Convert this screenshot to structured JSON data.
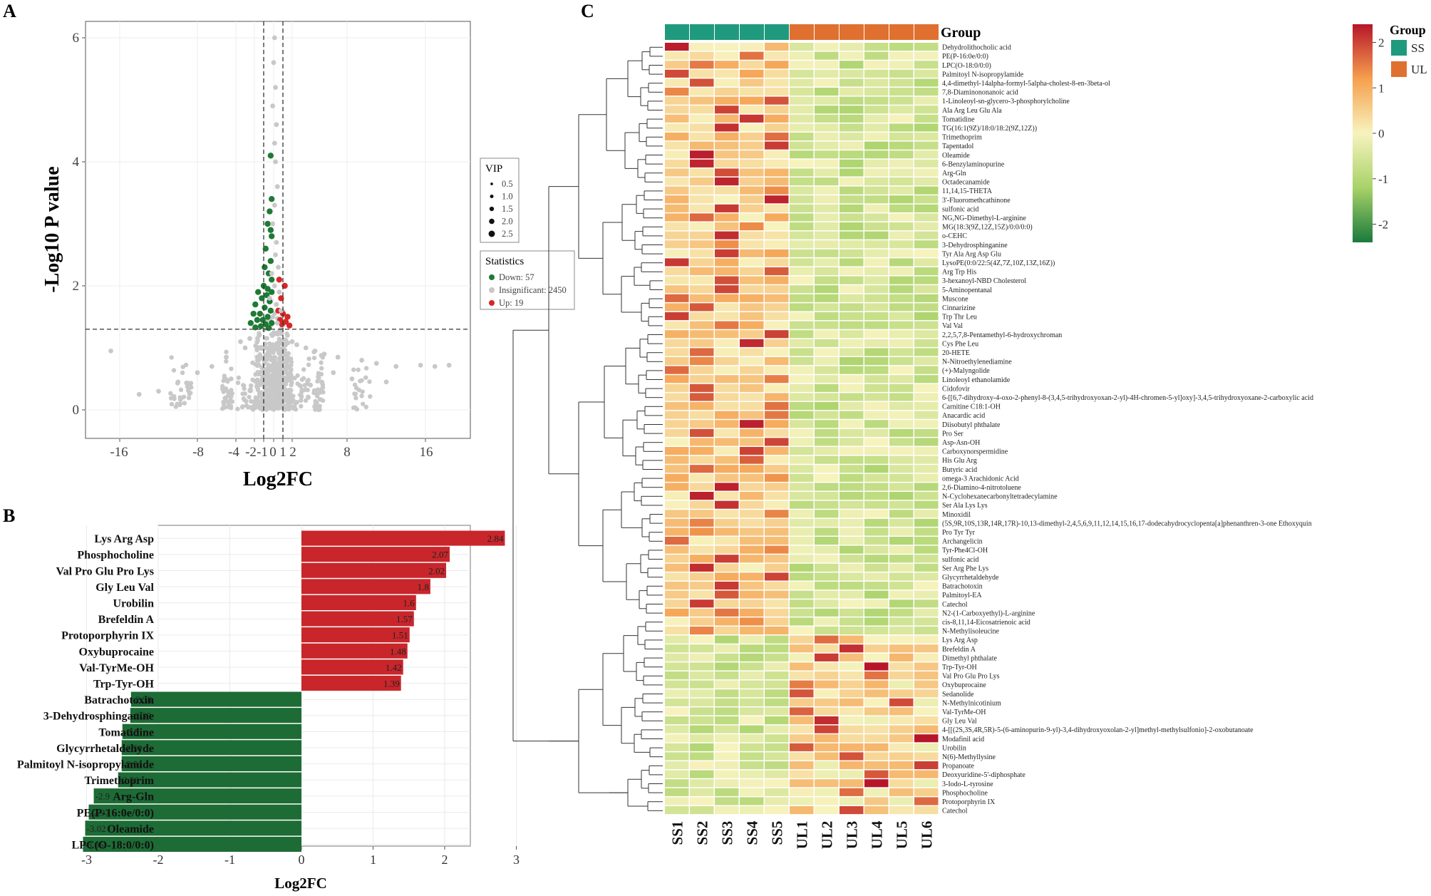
{
  "panels": {
    "a": "A",
    "b": "B",
    "c": "C"
  },
  "chart_data": [
    {
      "type": "scatter",
      "panel": "A",
      "xlabel": "Log2FC",
      "ylabel": "-Log10 P value",
      "xticks": [
        -16,
        -8,
        -4,
        -2,
        -1,
        0,
        1,
        2,
        8,
        16
      ],
      "xtick_labels": [
        "-16",
        "-8",
        "-4",
        "-2",
        "-1",
        "0",
        "1",
        "2",
        "8",
        "16"
      ],
      "yticks": [
        0,
        2,
        4,
        6
      ],
      "xlim": [
        -20,
        20
      ],
      "ylim": [
        -0.3,
        6.4
      ],
      "thresholds": {
        "log2fc": [
          -1,
          1
        ],
        "neglog10p": 1.3
      },
      "vip_legend": {
        "title": "VIP",
        "sizes": [
          0.5,
          1.0,
          1.5,
          2.0,
          2.5
        ],
        "labels": [
          "0.5",
          "1.0",
          "1.5",
          "2.0",
          "2.5"
        ]
      },
      "stats_legend": {
        "title": "Statistics",
        "entries": [
          {
            "label": "Down: 57",
            "color": "#1e7a35"
          },
          {
            "label": "Insignificant: 2450",
            "color": "#c8c8c8"
          },
          {
            "label": "Up: 19",
            "color": "#d62728"
          }
        ]
      },
      "series": [
        {
          "name": "Down",
          "color": "#1e7a35",
          "points": [
            [
              -0.3,
              4.1
            ],
            [
              -0.2,
              3.4
            ],
            [
              -0.4,
              3.2
            ],
            [
              -0.6,
              3.0
            ],
            [
              -0.2,
              2.8
            ],
            [
              -0.8,
              2.6
            ],
            [
              -0.3,
              2.4
            ],
            [
              -0.5,
              2.2
            ],
            [
              -1.0,
              2.0
            ],
            [
              -0.2,
              2.1
            ],
            [
              -1.6,
              1.9
            ],
            [
              -0.7,
              1.85
            ],
            [
              -1.2,
              1.8
            ],
            [
              -0.4,
              1.75
            ],
            [
              -1.9,
              1.7
            ],
            [
              -0.9,
              1.65
            ],
            [
              -0.3,
              1.6
            ],
            [
              -1.4,
              1.55
            ],
            [
              -2.1,
              1.55
            ],
            [
              -0.6,
              1.5
            ],
            [
              -1.1,
              1.45
            ],
            [
              -1.7,
              1.45
            ],
            [
              -0.2,
              1.4
            ],
            [
              -2.4,
              1.4
            ],
            [
              -0.8,
              1.38
            ],
            [
              -1.3,
              1.35
            ],
            [
              -1.9,
              1.33
            ],
            [
              -0.5,
              1.32
            ],
            [
              -0.3,
              2.9
            ],
            [
              -0.9,
              2.3
            ],
            [
              -0.6,
              1.95
            ],
            [
              -0.2,
              1.9
            ]
          ]
        },
        {
          "name": "Up",
          "color": "#d62728",
          "points": [
            [
              0.6,
              2.1
            ],
            [
              1.2,
              2.0
            ],
            [
              0.8,
              1.8
            ],
            [
              0.5,
              1.6
            ],
            [
              1.0,
              1.55
            ],
            [
              1.5,
              1.5
            ],
            [
              0.7,
              1.45
            ],
            [
              1.3,
              1.42
            ],
            [
              0.9,
              1.38
            ],
            [
              1.7,
              1.36
            ]
          ]
        },
        {
          "name": "Insignificant",
          "color": "#c8c8c8",
          "points": [
            [
              0.1,
              6.0
            ],
            [
              0.0,
              5.6
            ],
            [
              0.2,
              5.2
            ],
            [
              -0.1,
              4.9
            ],
            [
              0.3,
              4.6
            ],
            [
              0.1,
              4.3
            ],
            [
              0.2,
              4.0
            ],
            [
              0.4,
              3.6
            ],
            [
              0.1,
              3.3
            ],
            [
              -0.1,
              3.0
            ],
            [
              0.3,
              2.7
            ],
            [
              0.2,
              2.5
            ],
            [
              0.5,
              2.3
            ],
            [
              -0.2,
              2.2
            ],
            [
              0.1,
              2.0
            ],
            [
              0.6,
              1.9
            ],
            [
              -0.4,
              1.8
            ],
            [
              0.3,
              1.7
            ],
            [
              0.8,
              1.6
            ],
            [
              -0.1,
              1.5
            ],
            [
              0.4,
              1.4
            ],
            [
              -18.0,
              0.95
            ],
            [
              9.5,
              0.8
            ],
            [
              11.0,
              0.75
            ],
            [
              13.0,
              0.7
            ],
            [
              15.5,
              0.72
            ],
            [
              17.0,
              0.7
            ],
            [
              18.5,
              0.72
            ],
            [
              7.0,
              0.85
            ],
            [
              5.5,
              0.9
            ],
            [
              4.5,
              0.95
            ],
            [
              3.5,
              1.0
            ],
            [
              2.5,
              1.05
            ],
            [
              -3.0,
              1.0
            ],
            [
              -5.0,
              0.85
            ],
            [
              -6.5,
              0.7
            ],
            [
              -8.0,
              0.6
            ],
            [
              -10.0,
              0.45
            ],
            [
              -12.0,
              0.3
            ],
            [
              -14.0,
              0.25
            ],
            [
              -3.5,
              1.1
            ],
            [
              -2.5,
              1.15
            ],
            [
              -1.5,
              1.2
            ],
            [
              1.5,
              1.2
            ],
            [
              2.0,
              1.1
            ],
            [
              6.5,
              0.6
            ],
            [
              8.5,
              0.5
            ],
            [
              12.0,
              0.45
            ],
            [
              -4.5,
              0.5
            ],
            [
              4.0,
              0.4
            ]
          ]
        }
      ]
    },
    {
      "type": "bar",
      "panel": "B",
      "orientation": "horizontal",
      "xlabel": "Log2FC",
      "xlim": [
        -3.2,
        3.3
      ],
      "xticks": [
        -3,
        -2,
        -1,
        0,
        1,
        2,
        3
      ],
      "xtick_labels": [
        "-3",
        "-2",
        "-1",
        "0",
        "1",
        "2",
        "3"
      ],
      "categories": [
        "Lys Arg Asp",
        "Phosphocholine",
        "Val Pro Glu Pro Lys",
        "Gly Leu Val",
        "Urobilin",
        "Brefeldin A",
        "Protoporphyrin IX",
        "Oxybuprocaine",
        "Val-TyrMe-OH",
        "Trp-Tyr-OH",
        "Batrachotoxin",
        "3-Dehydrosphinganine",
        "Tomatidine",
        "Glycyrrhetaldehyde",
        "Palmitoyl N-isopropylamide",
        "Trimethoprim",
        "Arg-Gln",
        "PE(P-16:0e/0:0)",
        "Oleamide",
        "LPC(O-18:0/0:0)"
      ],
      "values": [
        2.84,
        2.07,
        2.02,
        1.8,
        1.6,
        1.57,
        1.51,
        1.48,
        1.42,
        1.39,
        -2.38,
        -2.39,
        -2.5,
        -2.51,
        -2.51,
        -2.56,
        -2.9,
        -2.97,
        -3.02,
        -3.05
      ],
      "value_labels": [
        "2.84",
        "2.07",
        "2.02",
        "1.8",
        "1.6",
        "1.57",
        "1.51",
        "1.48",
        "1.42",
        "1.39",
        "-2.38",
        "-2.39",
        "-2.5",
        "-2.51",
        "-2.51",
        "-2.56",
        "-2.9",
        "-2.97",
        "-3.02",
        "-3.05"
      ],
      "colors": {
        "up": "#c8262b",
        "down": "#1d6b35"
      }
    },
    {
      "type": "heatmap",
      "panel": "C",
      "columns": [
        "SS1",
        "SS2",
        "SS3",
        "SS4",
        "SS5",
        "UL1",
        "UL2",
        "UL3",
        "UL4",
        "UL5",
        "UL6"
      ],
      "column_groups": [
        "SS",
        "SS",
        "SS",
        "SS",
        "SS",
        "UL",
        "UL",
        "UL",
        "UL",
        "UL",
        "UL"
      ],
      "group_title": "Group",
      "group_colors": {
        "SS": "#1f9a7f",
        "UL": "#e07030"
      },
      "group_legend": {
        "title": "Group",
        "entries": [
          {
            "label": "SS",
            "color": "#1f9a7f"
          },
          {
            "label": "UL",
            "color": "#e07030"
          }
        ]
      },
      "colorbar": {
        "min": -2.4,
        "max": 2.4,
        "ticks": [
          -2,
          -1,
          0,
          1,
          2
        ],
        "tick_labels": [
          "-2",
          "-1",
          "0",
          "1",
          "2"
        ],
        "colors": [
          "#1a7a3c",
          "#a8d268",
          "#f7f3be",
          "#f6a04e",
          "#b7162a"
        ]
      },
      "rows": [
        "Dehydrolithocholic acid",
        "PE(P-16:0e/0:0)",
        "LPC(O-18:0/0:0)",
        "Palmitoyl N-isopropylamide",
        "4,4-dimethyl-14alpha-formyl-5alpha-cholest-8-en-3beta-ol",
        "7,8-Diaminononanoic acid",
        "1-Linoleoyl-sn-glycero-3-phosphorylcholine",
        "Ala Arg Leu Glu Ala",
        "Tomatidine",
        "TG(16:1(9Z)/18:0/18:2(9Z,12Z))",
        "Trimethoprim",
        "Tapentadol",
        "Oleamide",
        "6-Benzylaminopurine",
        "Arg-Gln",
        "Octadecanamide",
        "11,14,15-THETA",
        "3'-Fluoromethcathinone",
        "sulfonic acid",
        "NG,NG-Dimethyl-L-arginine",
        "MG(18:3(9Z,12Z,15Z)/0:0/0:0)",
        "o-CEHC",
        "3-Dehydrosphinganine",
        "Tyr Ala Arg Asp Glu",
        "LysoPE(0:0/22:5(4Z,7Z,10Z,13Z,16Z))",
        "Arg Trp His",
        "3-hexanoyl-NBD Cholesterol",
        "5-Aminopentanal",
        "Muscone",
        "Cinnarizine",
        "Trp Thr Leu",
        "Val Val",
        "2,2,5,7,8-Pentamethyl-6-hydroxychroman",
        "Cys Phe Leu",
        "20-HETE",
        "N-Nitroethylenediamine",
        "(+)-Malyngolide",
        "Linoleoyl ethanolamide",
        "Cidofovir",
        "6-[[6,7-dihydroxy-4-oxo-2-phenyl-8-(3,4,5-trihydroxyoxan-2-yl)-4H-chromen-5-yl]oxy]-3,4,5-trihydroxyoxane-2-carboxylic acid",
        "Carnitine C18:1-OH",
        "Anacardic acid",
        "Diisobutyl phthalate",
        "Pro Ser",
        "Asp-Asn-OH",
        "Carboxynorspermidine",
        "His Glu Arg",
        "Butyric acid",
        "omega-3 Arachidonic Acid",
        "2,6-Diamino-4-nitrotoluene",
        "N-Cyclohexanecarbonyltetradecylamine",
        "Ser Ala Lys Lys",
        "Minoxidil",
        "(5S,9R,10S,13R,14R,17R)-10,13-dimethyl-2,4,5,6,9,11,12,14,15,16,17-dodecahydrocyclopenta[a]phenanthren-3-one Ethoxyquin",
        "Pro Tyr Tyr",
        "Archangelicin",
        "Tyr-Phe4Cl-OH",
        "sulfonic acid",
        "Ser Arg Phe Lys",
        "Glycyrrhetaldehyde",
        "Batrachotoxin",
        "Palmitoyl-EA",
        "Catechol",
        "N2-(1-Carboxyethyl)-L-arginine",
        "cis-8,11,14-Eicosatrienoic acid",
        "N-Methylisoleucine",
        "Lys Arg Asp",
        "Brefeldin A",
        "Dimethyl phthalate",
        "Trp-Tyr-OH",
        "Val Pro Glu Pro Lys",
        "Oxybuprocaine",
        "Sedanolide",
        "N-Methylnicotinium",
        "Val-TyrMe-OH",
        "Gly Leu Val",
        "4-[[(2S,3S,4R,5R)-5-(6-aminopurin-9-yl)-3,4-dihydroxyoxolan-2-yl]methyl-methylsulfonio]-2-oxobutanoate",
        "Modafinil acid",
        "Urobilin",
        "N(6)-Methyllysine",
        "Propanoate",
        "Deoxyuridine-5'-diphosphate",
        "3-Iodo-L-tyrosine",
        "Phosphocholine",
        "Protoporphyrin IX",
        "Catechol"
      ]
    }
  ]
}
